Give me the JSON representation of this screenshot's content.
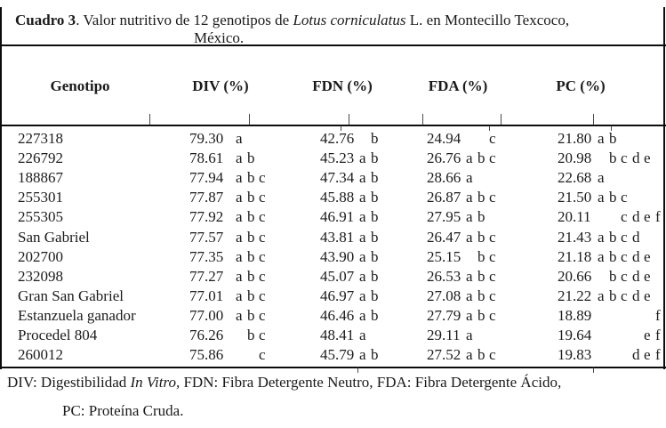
{
  "colors": {
    "ink": "#1a1a1a",
    "rule": "#0c0c0c",
    "background": "#ffffff"
  },
  "caption": {
    "bold_label": "Cuadro 3",
    "before_species": ". Valor nutritivo de 12 genotipos de ",
    "species": "Lotus corniculatus",
    "after_species": " L. en Montecillo Texcoco,",
    "line2": "México."
  },
  "table": {
    "columns": [
      "Genotipo",
      "DIV (%)",
      "FDN (%)",
      "FDA (%)",
      "PC (%)"
    ],
    "rows": [
      {
        "genotipo": "227318",
        "div": "79.30",
        "div_sig": "a",
        "fdn": "42.76",
        "fdn_sig": "b",
        "fda": "24.94",
        "fda_sig": "c",
        "pc": "21.80",
        "pc_sig": "ab"
      },
      {
        "genotipo": "226792",
        "div": "78.61",
        "div_sig": "ab",
        "fdn": "45.23",
        "fdn_sig": "ab",
        "fda": "26.76",
        "fda_sig": "abc",
        "pc": "20.98",
        "pc_sig": "bcde"
      },
      {
        "genotipo": "188867",
        "div": "77.94",
        "div_sig": "abc",
        "fdn": "47.34",
        "fdn_sig": "ab",
        "fda": "28.66",
        "fda_sig": "a",
        "pc": "22.68",
        "pc_sig": "a"
      },
      {
        "genotipo": "255301",
        "div": "77.87",
        "div_sig": "abc",
        "fdn": "45.88",
        "fdn_sig": "ab",
        "fda": "26.87",
        "fda_sig": "abc",
        "pc": "21.50",
        "pc_sig": "abc"
      },
      {
        "genotipo": "255305",
        "div": "77.92",
        "div_sig": "abc",
        "fdn": "46.91",
        "fdn_sig": "ab",
        "fda": "27.95",
        "fda_sig": "ab",
        "pc": "20.11",
        "pc_sig": "cdef"
      },
      {
        "genotipo": "San Gabriel",
        "div": "77.57",
        "div_sig": "abc",
        "fdn": "43.81",
        "fdn_sig": "ab",
        "fda": "26.47",
        "fda_sig": "abc",
        "pc": "21.43",
        "pc_sig": "abcd"
      },
      {
        "genotipo": "202700",
        "div": "77.35",
        "div_sig": "abc",
        "fdn": "43.90",
        "fdn_sig": "ab",
        "fda": "25.15",
        "fda_sig": "bc",
        "pc": "21.18",
        "pc_sig": "abcde"
      },
      {
        "genotipo": "232098",
        "div": "77.27",
        "div_sig": "abc",
        "fdn": "45.07",
        "fdn_sig": "ab",
        "fda": "26.53",
        "fda_sig": "abc",
        "pc": "20.66",
        "pc_sig": "bcde"
      },
      {
        "genotipo": "Gran San Gabriel",
        "div": "77.01",
        "div_sig": "abc",
        "fdn": "46.97",
        "fdn_sig": "ab",
        "fda": "27.08",
        "fda_sig": "abc",
        "pc": "21.22",
        "pc_sig": "abcde"
      },
      {
        "genotipo": "Estanzuela ganador",
        "div": "77.00",
        "div_sig": "abc",
        "fdn": "46.46",
        "fdn_sig": "ab",
        "fda": "27.79",
        "fda_sig": "abc",
        "pc": "18.89",
        "pc_sig": "f"
      },
      {
        "genotipo": "Procedel 804",
        "div": "76.26",
        "div_sig": "bc",
        "fdn": "48.41",
        "fdn_sig": "a",
        "fda": "29.11",
        "fda_sig": "a",
        "pc": "19.64",
        "pc_sig": "ef"
      },
      {
        "genotipo": "260012",
        "div": "75.86",
        "div_sig": "c",
        "fdn": "45.79",
        "fdn_sig": "ab",
        "fda": "27.52",
        "fda_sig": "abc",
        "pc": "19.83",
        "pc_sig": "def"
      }
    ]
  },
  "footnotes": {
    "line1_before": "DIV: Digestibilidad ",
    "line1_italic": "In Vitro,",
    "line1_after": " FDN: Fibra Detergente Neutro, FDA: Fibra Detergente Ácido,",
    "line2": "PC: Proteína Cruda."
  }
}
